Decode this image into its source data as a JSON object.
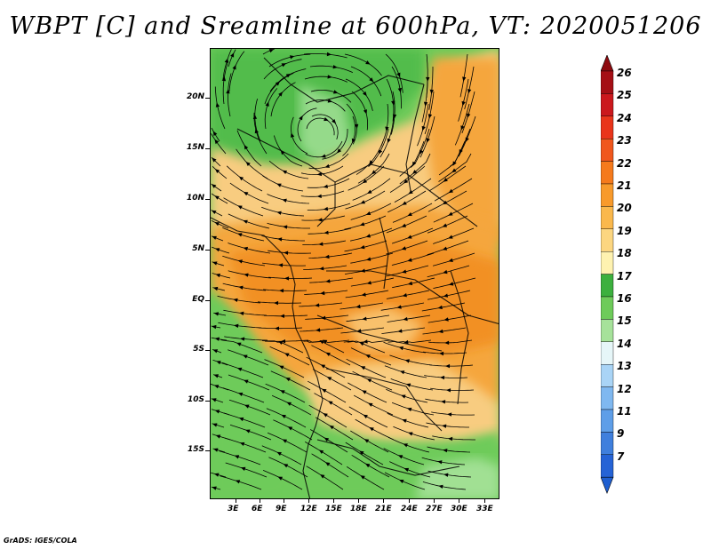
{
  "figure": {
    "title": "WBPT [C] and Sreamline at 600hPa, VT: 2020051206",
    "credit": "GrADS: IGES/COLA"
  },
  "map": {
    "lat_labels": [
      "20N",
      "15N",
      "10N",
      "5N",
      "EQ",
      "5S",
      "10S",
      "15S"
    ],
    "lon_labels": [
      "3E",
      "6E",
      "9E",
      "12E",
      "15E",
      "18E",
      "21E",
      "24E",
      "27E",
      "30E",
      "33E"
    ],
    "colors": {
      "orange_dark": "#f08a1a",
      "orange": "#f5a63c",
      "tan": "#f8cc80",
      "light_yellow": "#fde9a8",
      "green": "#6ecb5a",
      "green_dark": "#3cb03e",
      "green_light": "#a6e29a",
      "pale": "#e6f6dc",
      "streamline": "#000000"
    }
  },
  "legend": {
    "labels": [
      "26",
      "25",
      "24",
      "23",
      "22",
      "21",
      "20",
      "19",
      "18",
      "17",
      "16",
      "15",
      "14",
      "13",
      "12",
      "11",
      "9",
      "7"
    ],
    "colors": [
      "#a50f15",
      "#cb181d",
      "#e9351b",
      "#f0571d",
      "#f57a1c",
      "#f89a2b",
      "#fab84c",
      "#fcd680",
      "#fef2b0",
      "#3cb03e",
      "#6ecb5a",
      "#a6e29a",
      "#e6f6f8",
      "#a9d4f6",
      "#7fb8f0",
      "#5e9ee8",
      "#3f7fdd",
      "#2563d6"
    ],
    "arrow_top_color": "#8e0b10",
    "arrow_bottom_color": "#1f5fd0"
  }
}
